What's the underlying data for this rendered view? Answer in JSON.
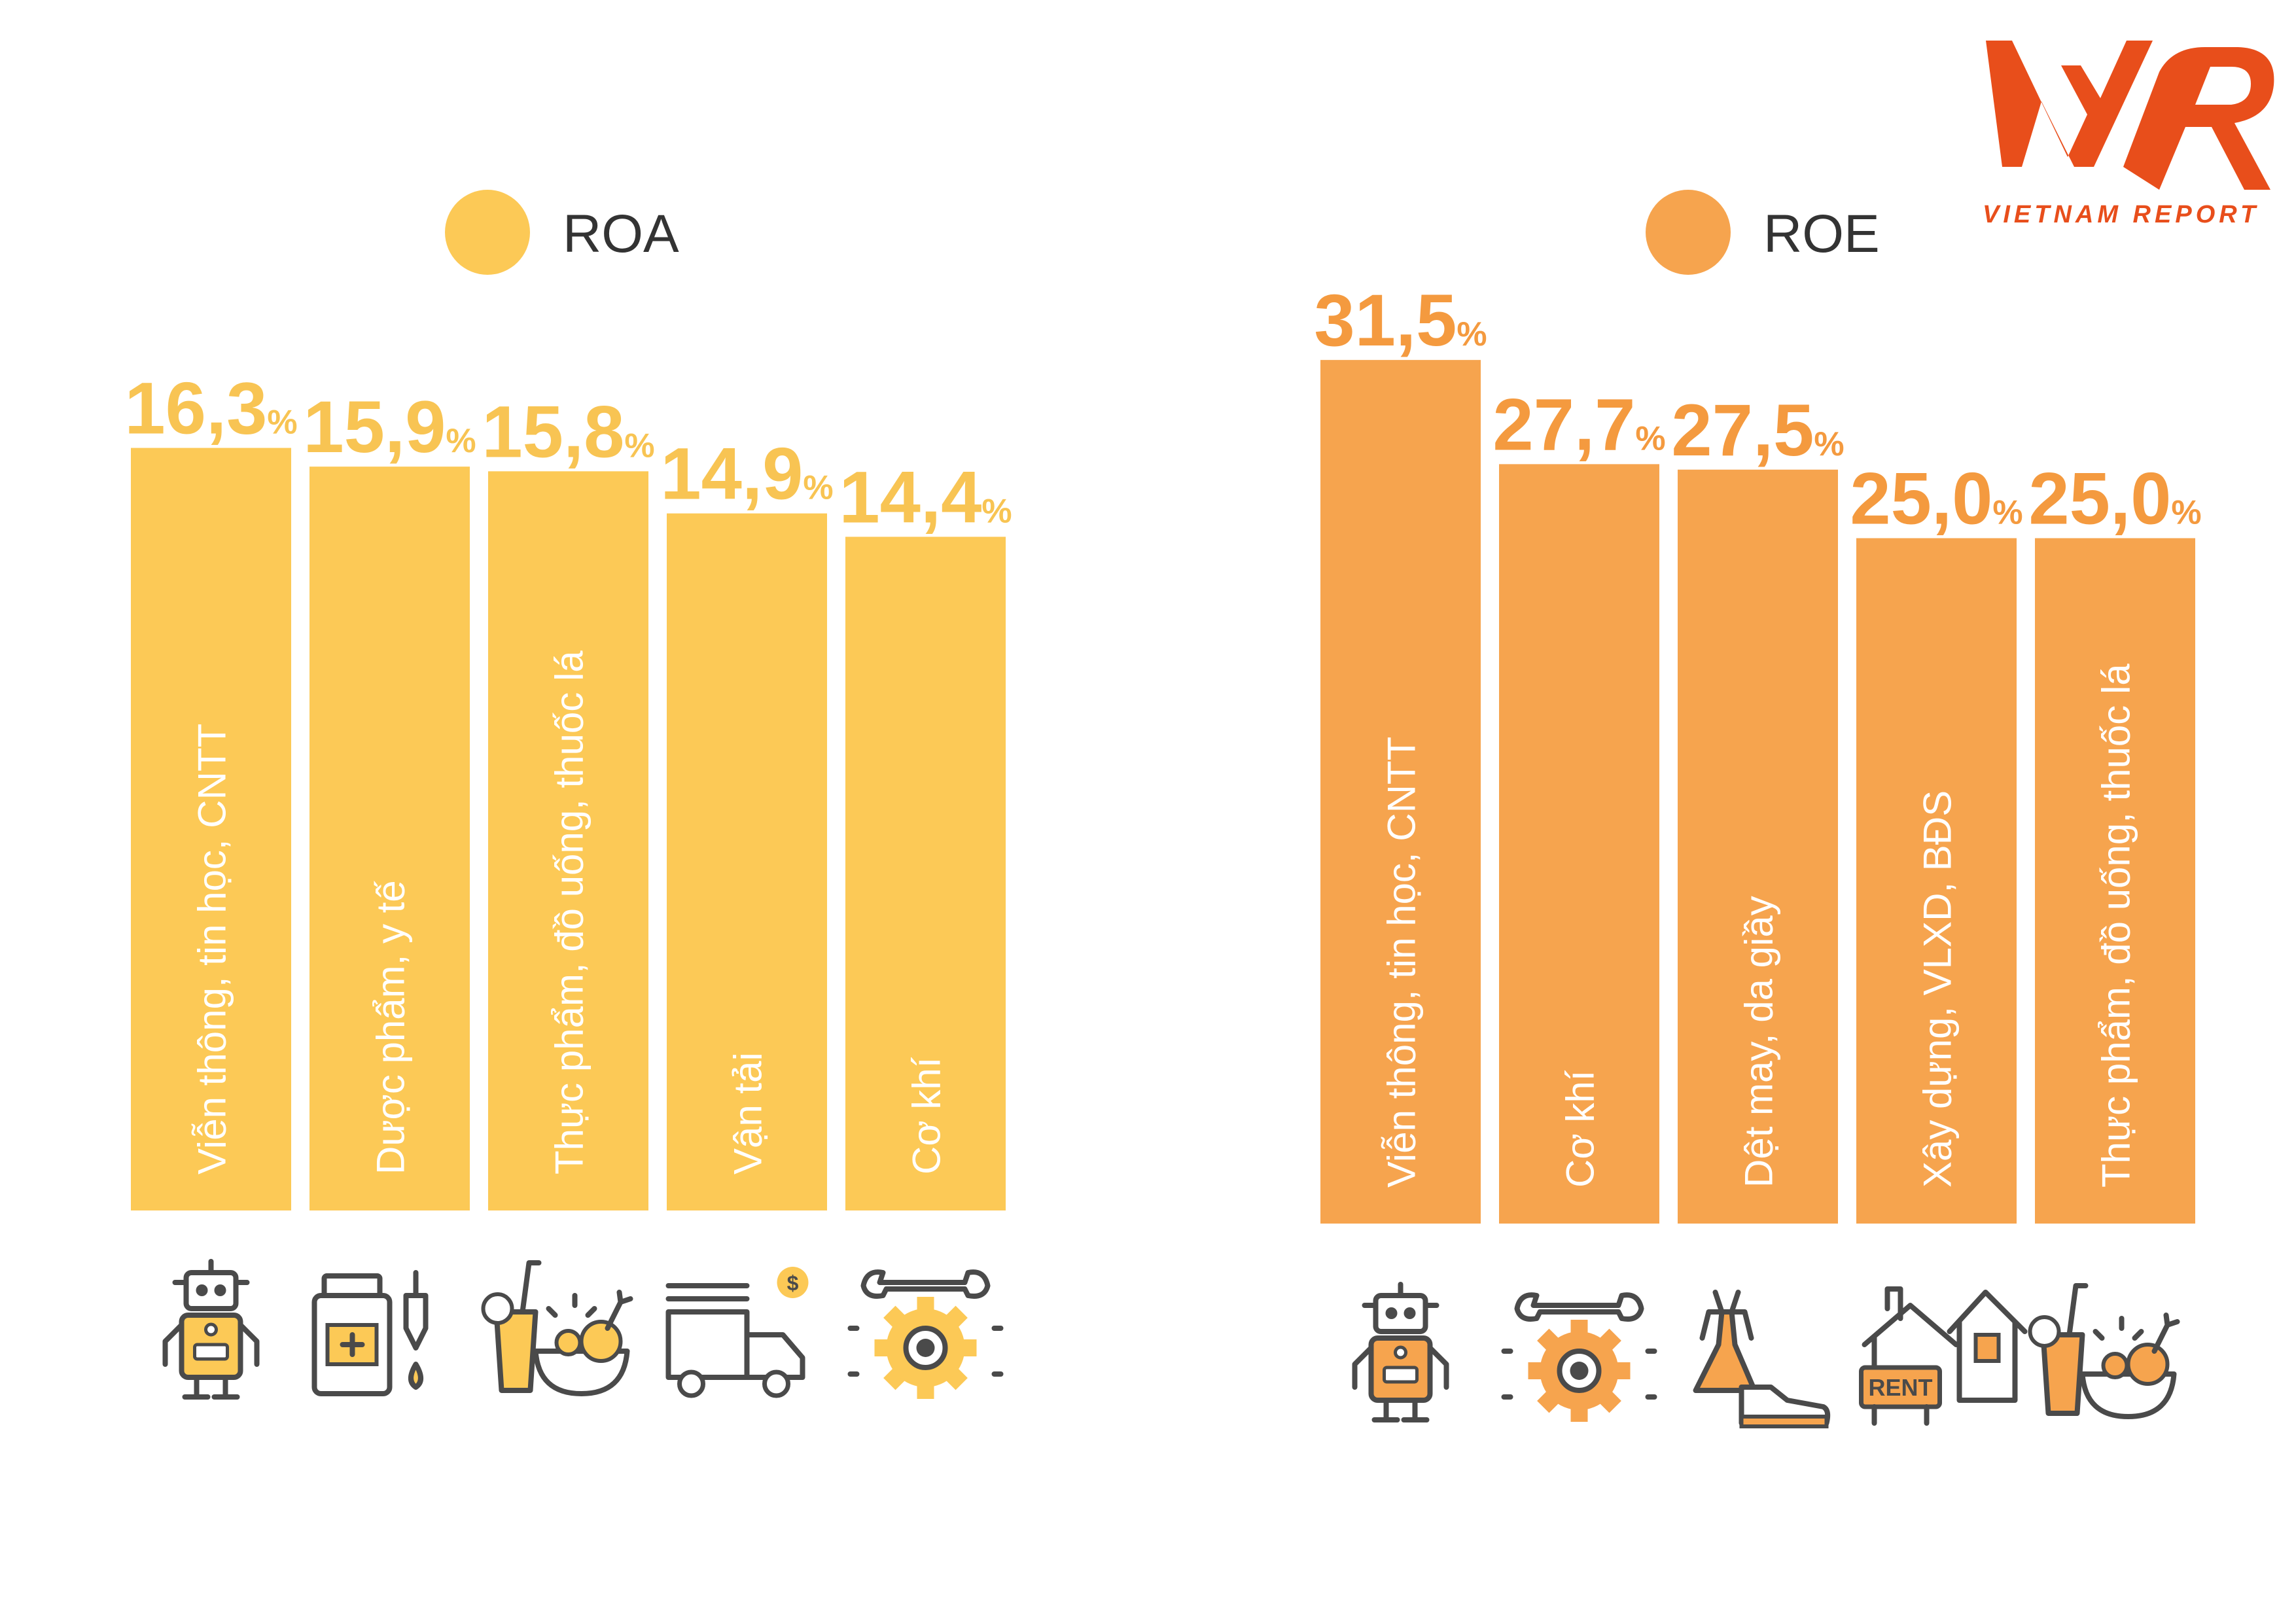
{
  "logo": {
    "text": "VIETNAM REPORT",
    "mark": "VNR",
    "color": "#e84e1b"
  },
  "chart_data": [
    {
      "type": "bar",
      "legend": "ROA",
      "unit": "%",
      "color": "#fcc956",
      "value_color": "#f8c453",
      "categories": [
        "Viễn thông, tin học, CNTT",
        "Dược phẩm, y tế",
        "Thực phẩm, đồ uống, thuốc lá",
        "Vận tải",
        "Cơ khí"
      ],
      "values": [
        16.3,
        15.9,
        15.8,
        14.9,
        14.4
      ],
      "value_labels": [
        "16,3",
        "15,9",
        "15,8",
        "14,9",
        "14,4"
      ],
      "icons": [
        "robot-icon",
        "medicine-icon",
        "food-drink-icon",
        "truck-icon",
        "gear-wrench-icon"
      ]
    },
    {
      "type": "bar",
      "legend": "ROE",
      "unit": "%",
      "color": "#f6a44e",
      "value_color": "#f49a3f",
      "categories": [
        "Viễn thông, tin học, CNTT",
        "Cơ khí",
        "Dệt may, da giầy",
        "Xây dựng, VLXD, BĐS",
        "Thực phẩm, đồ uống, thuốc lá"
      ],
      "values": [
        31.5,
        27.7,
        27.5,
        25.0,
        25.0
      ],
      "value_labels": [
        "31,5",
        "27,7",
        "27,5",
        "25,0",
        "25,0"
      ],
      "icons": [
        "robot-icon",
        "gear-wrench-icon",
        "dress-shoe-icon",
        "rent-house-icon",
        "food-drink-icon"
      ],
      "icon_text": {
        "rent-house-icon": "RENT"
      }
    }
  ]
}
